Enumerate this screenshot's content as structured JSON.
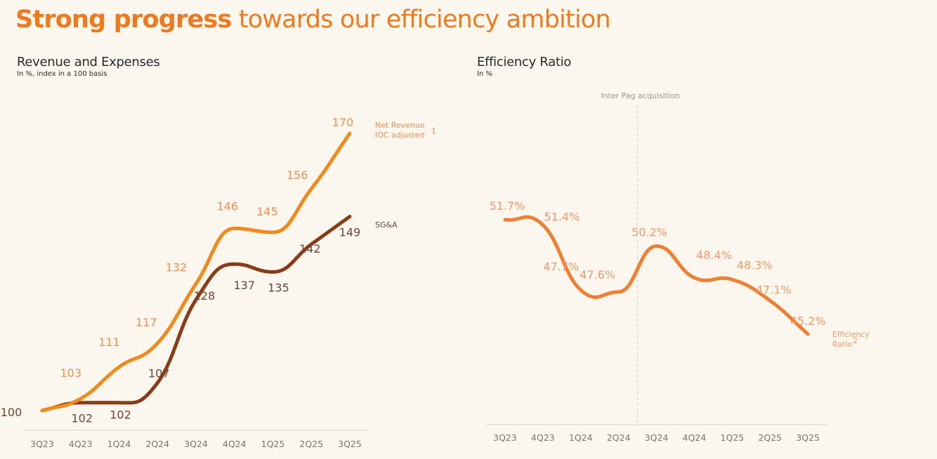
{
  "page": {
    "title_bold": "Strong progress",
    "title_rest": "towards our efficiency ambition"
  },
  "colors": {
    "background": "#fbf6ee",
    "title": "#ee7a1f",
    "net_revenue_line": "#f08a1c",
    "net_revenue_label": "#ee8f4f",
    "sga_line": "#8a3a14",
    "sga_label": "#6e4638",
    "efficiency_line": "#ee7f33",
    "efficiency_label": "#ee9a6a",
    "axis": "#e2ddd5",
    "tick": "#7a7470",
    "annotation": "#9a9591"
  },
  "chart_data": [
    {
      "type": "line",
      "title": "Revenue and Expenses",
      "subtitle": "In %, index in a 100 basis",
      "categories": [
        "3Q23",
        "4Q23",
        "1Q24",
        "2Q24",
        "3Q24",
        "4Q24",
        "1Q25",
        "2Q25",
        "3Q25"
      ],
      "series": [
        {
          "name": "Net Revenue IOC adjusted",
          "legend_line1": "Net Revenue",
          "legend_line2": "IOC adjusted",
          "legend_sup": "1",
          "values": [
            100,
            103,
            111,
            117,
            132,
            146,
            145,
            156,
            170
          ],
          "labels": [
            "100",
            "103",
            "111",
            "117",
            "132",
            "146",
            "145",
            "156",
            "170"
          ]
        },
        {
          "name": "SG&A",
          "legend_line1": "SG&A",
          "values": [
            100,
            102,
            102,
            107,
            128,
            137,
            135,
            142,
            149
          ],
          "labels": [
            "",
            "102",
            "102",
            "107",
            "128",
            "137",
            "135",
            "142",
            "149"
          ]
        }
      ],
      "ylim": [
        100,
        170
      ],
      "grid": false,
      "legend": "right"
    },
    {
      "type": "line",
      "title": "Efficiency Ratio",
      "subtitle": "In %",
      "categories": [
        "3Q23",
        "4Q23",
        "1Q24",
        "2Q24",
        "3Q24",
        "4Q24",
        "1Q25",
        "2Q25",
        "3Q25"
      ],
      "series": [
        {
          "name": "Efficiency Ratio",
          "legend_line1": "Efficiency",
          "legend_line2": "Ratio",
          "legend_sup": "2",
          "values": [
            51.7,
            51.4,
            47.7,
            47.6,
            50.2,
            48.4,
            48.3,
            47.1,
            45.2
          ],
          "labels": [
            "51.7%",
            "51.4%",
            "47.7%",
            "47.6%",
            "50.2%",
            "48.4%",
            "48.3%",
            "47.1%",
            "45.2%"
          ]
        }
      ],
      "annotation": {
        "text": "Inter Pag acquisition",
        "between": [
          "2Q24",
          "3Q24"
        ]
      },
      "grid": false,
      "legend": "right"
    }
  ]
}
